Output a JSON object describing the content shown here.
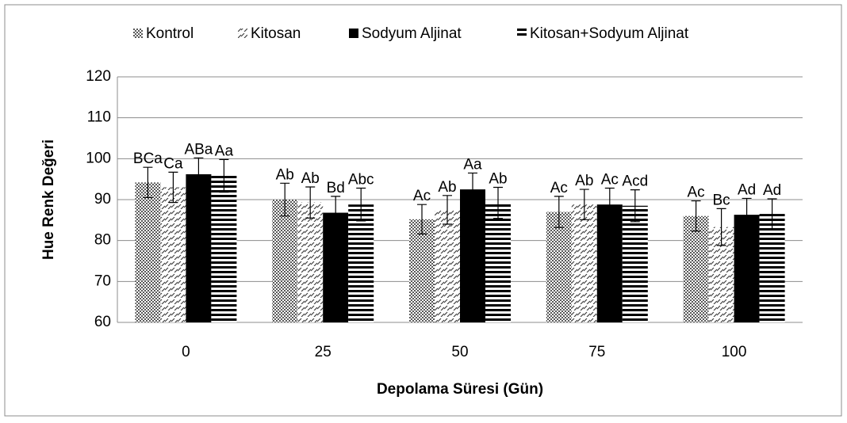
{
  "chart_data": {
    "type": "bar",
    "xlabel": "Depolama Süresi (Gün)",
    "ylabel": "Hue Renk Değeri",
    "categories": [
      "0",
      "25",
      "50",
      "75",
      "100"
    ],
    "series": [
      {
        "name": "Kontrol",
        "color": "#595959",
        "values": [
          94.2,
          90,
          85.2,
          87,
          86
        ],
        "errors": [
          3.7,
          4,
          3.6,
          3.8,
          3.7
        ],
        "labels": [
          "BCa",
          "Ab",
          "Ac",
          "Ac",
          "Ac"
        ]
      },
      {
        "name": "Kitosan",
        "color": "#404040",
        "values": [
          93,
          89.3,
          87.5,
          88.8,
          83.3
        ],
        "errors": [
          3.7,
          3.8,
          3.5,
          3.7,
          4.5
        ],
        "labels": [
          "Ca",
          "Ab",
          "Ab",
          "Ab",
          "Bc"
        ]
      },
      {
        "name": "Sodyum Aljinat",
        "color": "#000000",
        "values": [
          96.2,
          86.8,
          92.5,
          88.8,
          86.3
        ],
        "errors": [
          4,
          4,
          4,
          4,
          4
        ],
        "labels": [
          "ABa",
          "Bd",
          "Aa",
          "Ac",
          "Ad"
        ]
      },
      {
        "name": "Kitosan+Sodyum Aljinat",
        "color": "#000000",
        "values": [
          95.8,
          88.8,
          89.2,
          88.5,
          86.5
        ],
        "errors": [
          4,
          4,
          3.8,
          3.9,
          3.7
        ],
        "labels": [
          "Aa",
          "Abc",
          "Ab",
          "Acd",
          "Ad"
        ]
      }
    ],
    "ylim": [
      60,
      120
    ],
    "yticks": [
      60,
      70,
      80,
      90,
      100,
      110,
      120
    ],
    "grid": true,
    "legend": "top"
  }
}
